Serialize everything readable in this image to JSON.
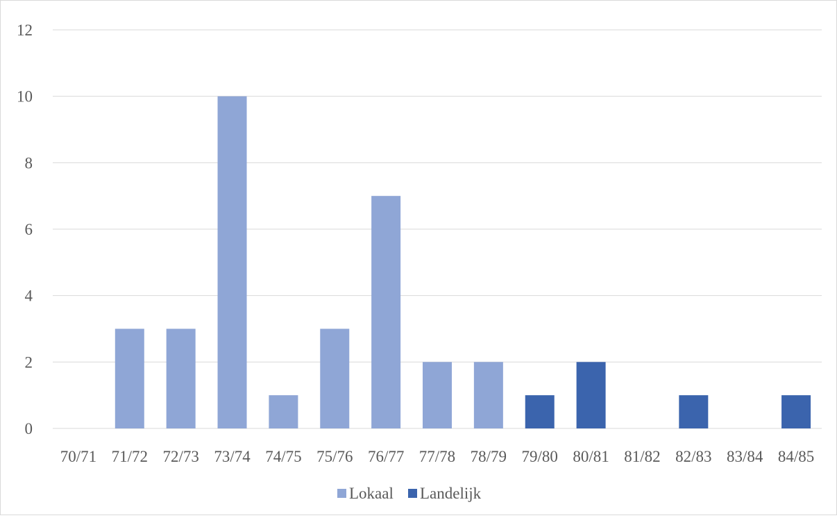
{
  "chart_data": {
    "type": "bar",
    "categories": [
      "70/71",
      "71/72",
      "72/73",
      "73/74",
      "74/75",
      "75/76",
      "76/77",
      "77/78",
      "78/79",
      "79/80",
      "80/81",
      "81/82",
      "82/83",
      "83/84",
      "84/85"
    ],
    "series": [
      {
        "name": "Lokaal",
        "color": "#8fa6d6",
        "values": [
          0,
          3,
          3,
          10,
          1,
          3,
          7,
          2,
          2,
          0,
          0,
          0,
          0,
          0,
          0
        ]
      },
      {
        "name": "Landelijk",
        "color": "#3b64ad",
        "values": [
          0,
          0,
          0,
          0,
          0,
          0,
          0,
          0,
          0,
          1,
          2,
          0,
          1,
          0,
          1
        ]
      }
    ],
    "stacked": true,
    "ylim": [
      0,
      12
    ],
    "yticks": [
      0,
      2,
      4,
      6,
      8,
      10,
      12
    ],
    "grid": true,
    "legend_position": "bottom",
    "title": "",
    "xlabel": "",
    "ylabel": ""
  }
}
